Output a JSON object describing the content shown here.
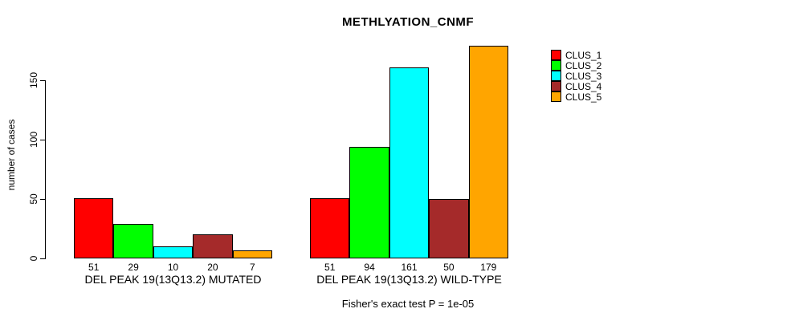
{
  "title": "METHLYATION_CNMF",
  "chart_data": {
    "type": "bar",
    "title": "METHLYATION_CNMF",
    "ylabel": "number of cases",
    "yticks": [
      0,
      50,
      100,
      150
    ],
    "ylim": [
      0,
      179
    ],
    "grid": false,
    "legend_position": "top-right",
    "series_names": [
      "CLUS_1",
      "CLUS_2",
      "CLUS_3",
      "CLUS_4",
      "CLUS_5"
    ],
    "colors": [
      "#FF0000",
      "#00FF00",
      "#00FFFF",
      "#A52A2A",
      "#FFA500"
    ],
    "groups": [
      {
        "label": "DEL PEAK 19(13Q13.2) MUTATED",
        "values": [
          51,
          29,
          10,
          20,
          7
        ]
      },
      {
        "label": "DEL PEAK 19(13Q13.2) WILD-TYPE",
        "values": [
          51,
          94,
          161,
          50,
          179
        ]
      }
    ],
    "annotation": "Fisher's exact test P = 1e-05"
  }
}
